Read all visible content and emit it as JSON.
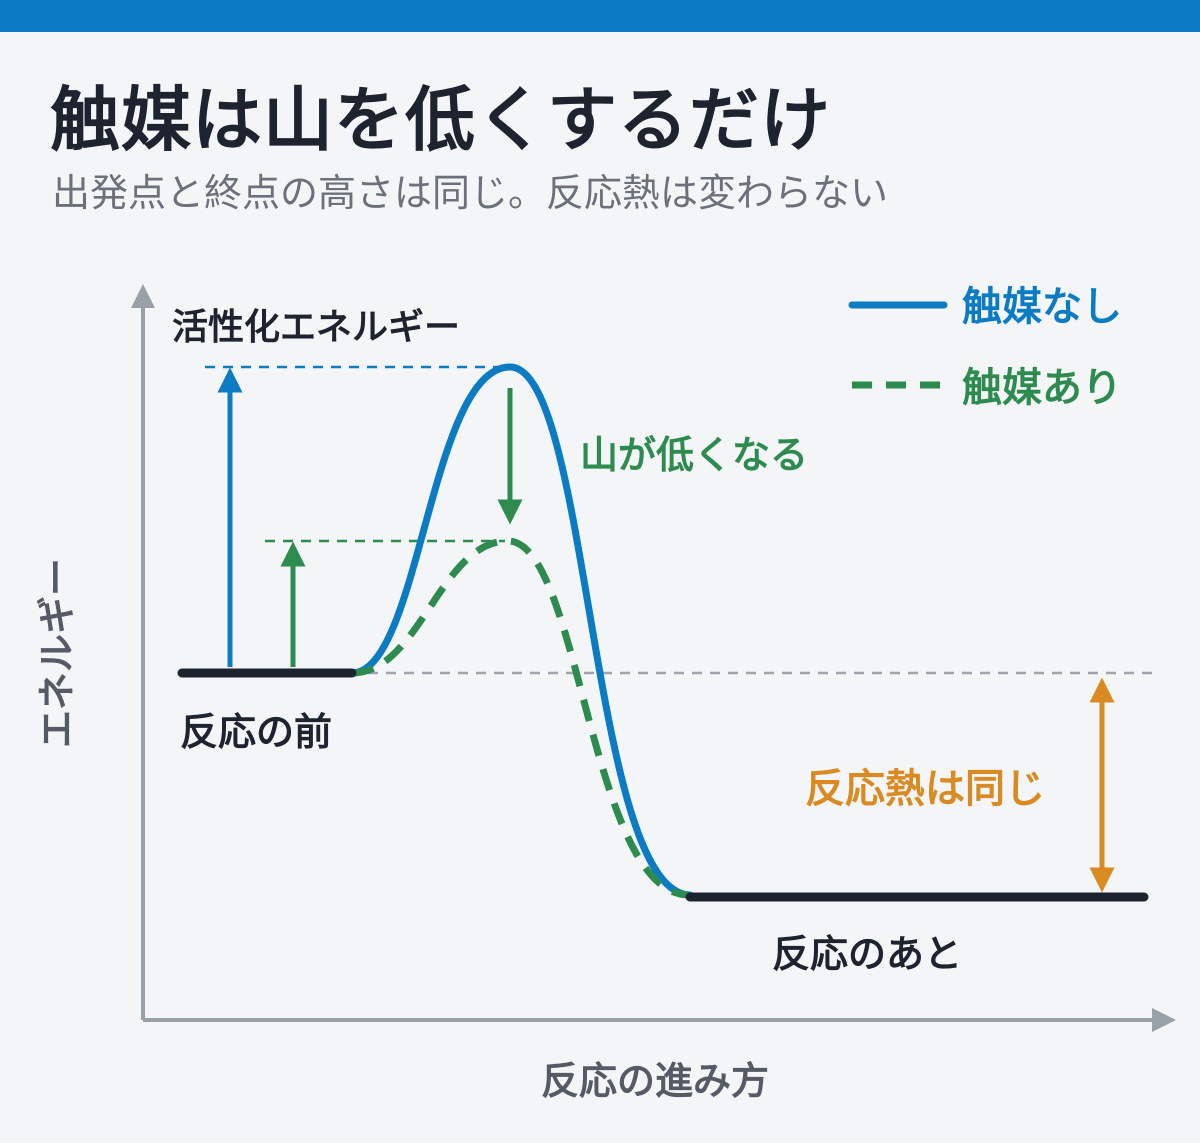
{
  "header": {
    "title": "触媒は山を低くするだけ",
    "subtitle": "出発点と終点の高さは同じ。反応熱は変わらない"
  },
  "diagram": {
    "y_axis_label": "エネルギー",
    "x_axis_label": "反応の進み方",
    "activation_energy_label": "活性化エネルギー",
    "before_label": "反応の前",
    "after_label": "反応のあと",
    "lowering_label": "山が低くなる",
    "heat_label": "反応熱は同じ",
    "legend": {
      "no_catalyst": "触媒なし",
      "with_catalyst": "触媒あり"
    }
  },
  "colors": {
    "accent_blue": "#0b7bc4",
    "catalyst_green": "#2e8b4f",
    "heat_orange": "#d98a22",
    "axis_gray": "#9aa0a8",
    "text_dark": "#1e2330"
  }
}
